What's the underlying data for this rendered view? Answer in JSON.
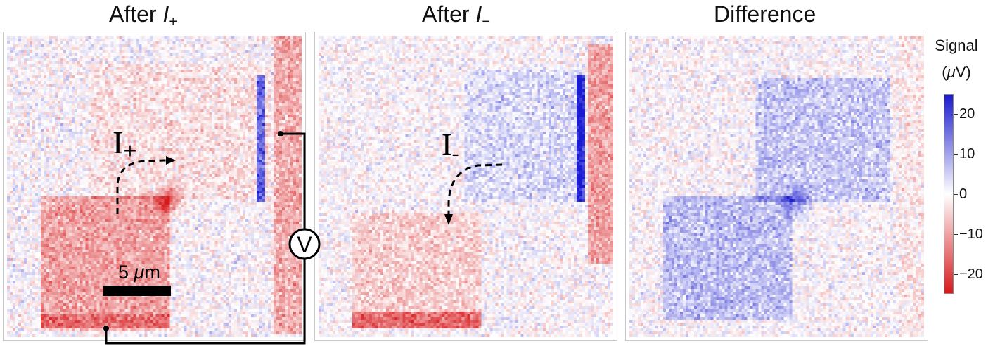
{
  "panels": [
    {
      "id": "after-plus",
      "title_main": "After ",
      "title_var": "I",
      "title_sub": "+"
    },
    {
      "id": "after-minus",
      "title_main": "After ",
      "title_var": "I",
      "title_sub": "−"
    },
    {
      "id": "difference",
      "title_main": "Difference",
      "title_var": "",
      "title_sub": ""
    }
  ],
  "colorbar": {
    "title_line1": "Signal",
    "title_open": "(",
    "title_unit": "μ",
    "title_rest": "V)",
    "ticks": [
      "20",
      "10",
      "0",
      "−10",
      "−20"
    ],
    "tick_values": [
      20,
      10,
      0,
      -10,
      -20
    ],
    "range": [
      -25,
      25
    ],
    "colors": {
      "negative": "#d7191c",
      "zero": "#ffffff",
      "positive": "#1a1ad0"
    }
  },
  "annotations": {
    "current_plus_letter": "I",
    "current_plus_sub": "+",
    "current_minus_letter": "I",
    "current_minus_sub": "-",
    "voltmeter_symbol": "V",
    "scalebar_number": "5 ",
    "scalebar_unit_mu": "μ",
    "scalebar_unit_m": "m"
  }
}
